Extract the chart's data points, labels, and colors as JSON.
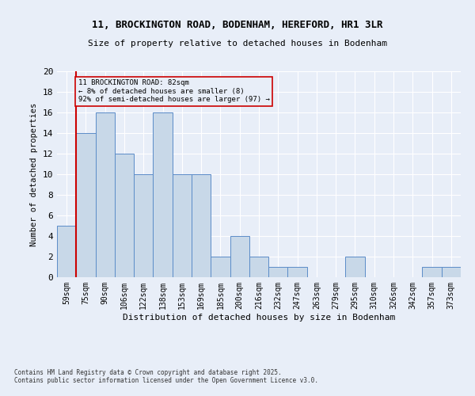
{
  "title_line1": "11, BROCKINGTON ROAD, BODENHAM, HEREFORD, HR1 3LR",
  "title_line2": "Size of property relative to detached houses in Bodenham",
  "xlabel": "Distribution of detached houses by size in Bodenham",
  "ylabel": "Number of detached properties",
  "categories": [
    "59sqm",
    "75sqm",
    "90sqm",
    "106sqm",
    "122sqm",
    "138sqm",
    "153sqm",
    "169sqm",
    "185sqm",
    "200sqm",
    "216sqm",
    "232sqm",
    "247sqm",
    "263sqm",
    "279sqm",
    "295sqm",
    "310sqm",
    "326sqm",
    "342sqm",
    "357sqm",
    "373sqm"
  ],
  "values": [
    5,
    14,
    16,
    12,
    10,
    16,
    10,
    10,
    2,
    4,
    2,
    1,
    1,
    0,
    0,
    2,
    0,
    0,
    0,
    1,
    1
  ],
  "bar_color": "#c8d8e8",
  "bar_edge_color": "#5b8cc8",
  "subject_line_color": "#cc0000",
  "annotation_text": "11 BROCKINGTON ROAD: 82sqm\n← 8% of detached houses are smaller (8)\n92% of semi-detached houses are larger (97) →",
  "annotation_box_color": "#cc0000",
  "footer_line1": "Contains HM Land Registry data © Crown copyright and database right 2025.",
  "footer_line2": "Contains public sector information licensed under the Open Government Licence v3.0.",
  "ylim": [
    0,
    20
  ],
  "background_color": "#e8eef8",
  "grid_color": "#ffffff"
}
